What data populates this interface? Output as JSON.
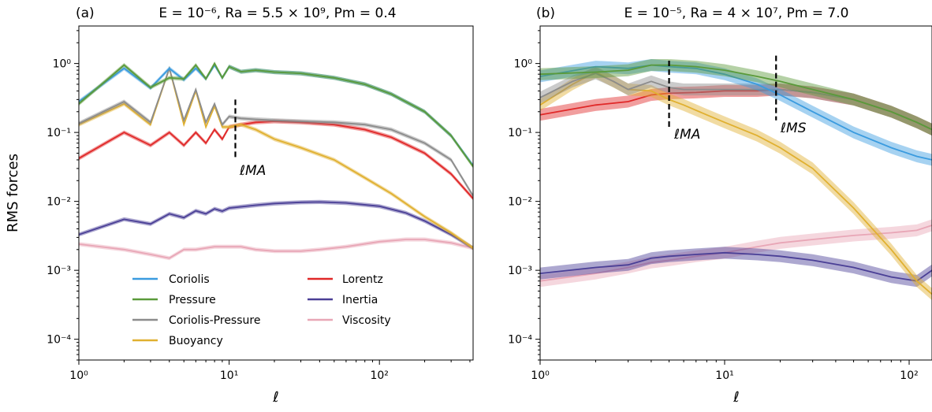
{
  "figure": {
    "ylabel": "RMS forces",
    "xlabel": "ℓ",
    "legend": [
      "Coriolis",
      "Pressure",
      "Coriolis-Pressure",
      "Buoyancy",
      "Lorentz",
      "Inertia",
      "Viscosity"
    ],
    "colors": {
      "Coriolis": "#3a9bdf",
      "Pressure": "#5a9a3a",
      "Coriolis-Pressure": "#8c8c8c",
      "Buoyancy": "#e0b030",
      "Lorentz": "#e02828",
      "Inertia": "#4a3f96",
      "Viscosity": "#e8a6b6"
    }
  },
  "panels": [
    {
      "label": "(a)",
      "title": "E = 10⁻⁶,  Ra = 5.5 × 10⁹,  Pm = 0.4",
      "annotation": "ℓMA"
    },
    {
      "label": "(b)",
      "title": "E = 10⁻⁵,  Ra = 4 × 10⁷,  Pm = 7.0",
      "annotation_1": "ℓMA",
      "annotation_2": "ℓMS"
    }
  ],
  "chart_data": [
    {
      "type": "line",
      "panel": "(a)",
      "xscale": "log",
      "yscale": "log",
      "xlim": [
        1,
        420
      ],
      "ylim": [
        5e-05,
        3.5
      ],
      "xticks": [
        1,
        10,
        100
      ],
      "xtick_labels": [
        "10⁰",
        "10¹",
        "10²"
      ],
      "yticks": [
        0.0001,
        0.001,
        0.01,
        0.1,
        1
      ],
      "ytick_labels": [
        "10⁻⁴",
        "10⁻³",
        "10⁻²",
        "10⁻¹",
        "10⁰"
      ],
      "xlabel": "ℓ",
      "ylabel": "RMS forces",
      "legend_position": "bottom-center",
      "vlines": [
        {
          "x": 11,
          "y": [
            0.04,
            0.3
          ],
          "label": "ℓMA"
        }
      ],
      "series": [
        {
          "name": "Coriolis",
          "x": [
            1,
            2,
            3,
            4,
            5,
            6,
            7,
            8,
            9,
            10,
            12,
            15,
            20,
            30,
            50,
            80,
            120,
            200,
            300,
            420
          ],
          "y": [
            0.28,
            0.85,
            0.44,
            0.85,
            0.58,
            0.85,
            0.6,
            0.95,
            0.62,
            0.9,
            0.76,
            0.8,
            0.75,
            0.72,
            0.62,
            0.5,
            0.36,
            0.2,
            0.09,
            0.033
          ]
        },
        {
          "name": "Pressure",
          "x": [
            1,
            2,
            3,
            4,
            5,
            6,
            7,
            8,
            9,
            10,
            12,
            15,
            20,
            30,
            50,
            80,
            120,
            200,
            300,
            420
          ],
          "y": [
            0.26,
            0.95,
            0.45,
            0.62,
            0.6,
            0.95,
            0.6,
            1.0,
            0.62,
            0.9,
            0.76,
            0.8,
            0.75,
            0.72,
            0.62,
            0.5,
            0.36,
            0.2,
            0.09,
            0.032
          ]
        },
        {
          "name": "Coriolis-Pressure",
          "x": [
            1,
            2,
            3,
            4,
            5,
            6,
            7,
            8,
            9,
            10,
            12,
            15,
            20,
            30,
            50,
            80,
            120,
            200,
            300,
            420
          ],
          "y": [
            0.135,
            0.28,
            0.14,
            0.85,
            0.15,
            0.42,
            0.14,
            0.26,
            0.13,
            0.17,
            0.16,
            0.155,
            0.15,
            0.145,
            0.14,
            0.13,
            0.11,
            0.07,
            0.04,
            0.012
          ]
        },
        {
          "name": "Buoyancy",
          "x": [
            1,
            2,
            3,
            4,
            5,
            6,
            7,
            8,
            9,
            10,
            12,
            15,
            20,
            30,
            50,
            80,
            120,
            200,
            300,
            420
          ],
          "y": [
            0.13,
            0.26,
            0.13,
            0.85,
            0.13,
            0.4,
            0.12,
            0.24,
            0.12,
            0.12,
            0.13,
            0.11,
            0.08,
            0.06,
            0.04,
            0.022,
            0.013,
            0.006,
            0.0035,
            0.0021
          ]
        },
        {
          "name": "Lorentz",
          "x": [
            1,
            2,
            3,
            4,
            5,
            6,
            7,
            8,
            9,
            10,
            12,
            15,
            20,
            30,
            50,
            80,
            120,
            200,
            300,
            420
          ],
          "y": [
            0.042,
            0.1,
            0.065,
            0.1,
            0.065,
            0.1,
            0.07,
            0.11,
            0.08,
            0.12,
            0.13,
            0.14,
            0.145,
            0.14,
            0.13,
            0.11,
            0.085,
            0.05,
            0.025,
            0.011
          ]
        },
        {
          "name": "Inertia",
          "x": [
            1,
            2,
            3,
            4,
            5,
            6,
            7,
            8,
            9,
            10,
            15,
            20,
            30,
            40,
            60,
            100,
            150,
            200,
            300,
            420
          ],
          "y": [
            0.0033,
            0.0055,
            0.0047,
            0.0066,
            0.0058,
            0.0073,
            0.0066,
            0.0078,
            0.0072,
            0.008,
            0.0088,
            0.0093,
            0.0097,
            0.0098,
            0.0095,
            0.0085,
            0.0068,
            0.0052,
            0.0033,
            0.0021
          ]
        },
        {
          "name": "Viscosity",
          "x": [
            1,
            2,
            3,
            4,
            5,
            6,
            8,
            10,
            12,
            15,
            20,
            30,
            40,
            60,
            100,
            150,
            200,
            300,
            420
          ],
          "y": [
            0.0024,
            0.002,
            0.0017,
            0.0015,
            0.002,
            0.002,
            0.0022,
            0.0022,
            0.0022,
            0.002,
            0.0019,
            0.0019,
            0.002,
            0.0022,
            0.0026,
            0.0028,
            0.0028,
            0.0025,
            0.0021
          ]
        }
      ]
    },
    {
      "type": "line",
      "panel": "(b)",
      "xscale": "log",
      "yscale": "log",
      "xlim": [
        1,
        133
      ],
      "ylim": [
        5e-05,
        3.5
      ],
      "xticks": [
        1,
        10,
        100
      ],
      "xtick_labels": [
        "10⁰",
        "10¹",
        "10²"
      ],
      "yticks": [
        0.0001,
        0.001,
        0.01,
        0.1,
        1
      ],
      "ytick_labels": [
        "10⁻⁴",
        "10⁻³",
        "10⁻²",
        "10⁻¹",
        "10⁰"
      ],
      "xlabel": "ℓ",
      "vlines": [
        {
          "x": 5,
          "y": [
            0.12,
            1.1
          ],
          "label": "ℓMA"
        },
        {
          "x": 19,
          "y": [
            0.15,
            1.3
          ],
          "label": "ℓMS"
        }
      ],
      "series": [
        {
          "name": "Coriolis",
          "x": [
            1,
            2,
            3,
            4,
            5,
            7,
            10,
            15,
            20,
            30,
            50,
            80,
            110,
            133
          ],
          "y": [
            0.65,
            0.9,
            0.85,
            0.95,
            0.9,
            0.85,
            0.7,
            0.5,
            0.35,
            0.2,
            0.1,
            0.06,
            0.045,
            0.04
          ]
        },
        {
          "name": "Pressure",
          "x": [
            1,
            2,
            3,
            4,
            5,
            7,
            10,
            15,
            20,
            30,
            50,
            80,
            110,
            133
          ],
          "y": [
            0.7,
            0.75,
            0.8,
            0.95,
            0.95,
            0.9,
            0.8,
            0.65,
            0.55,
            0.42,
            0.3,
            0.2,
            0.14,
            0.11
          ]
        },
        {
          "name": "Coriolis-Pressure",
          "x": [
            1,
            1.5,
            2,
            2.5,
            3,
            4,
            5,
            6,
            8,
            10,
            15,
            20,
            30,
            50,
            80,
            110,
            133
          ],
          "y": [
            0.32,
            0.55,
            0.72,
            0.55,
            0.42,
            0.55,
            0.45,
            0.42,
            0.42,
            0.42,
            0.42,
            0.42,
            0.38,
            0.3,
            0.2,
            0.14,
            0.11
          ]
        },
        {
          "name": "Buoyancy",
          "x": [
            1,
            1.5,
            2,
            3,
            4,
            5,
            6,
            8,
            10,
            15,
            20,
            30,
            50,
            80,
            110,
            133
          ],
          "y": [
            0.25,
            0.5,
            0.75,
            0.42,
            0.4,
            0.3,
            0.25,
            0.18,
            0.14,
            0.09,
            0.06,
            0.03,
            0.008,
            0.002,
            0.0007,
            0.00045
          ]
        },
        {
          "name": "Lorentz",
          "x": [
            1,
            2,
            3,
            4,
            5,
            7,
            10,
            15,
            20,
            30,
            50,
            80,
            110,
            133
          ],
          "y": [
            0.18,
            0.25,
            0.28,
            0.35,
            0.37,
            0.38,
            0.4,
            0.4,
            0.42,
            0.38,
            0.3,
            0.2,
            0.14,
            0.11
          ]
        },
        {
          "name": "Inertia",
          "x": [
            1,
            2,
            3,
            4,
            5,
            7,
            10,
            15,
            20,
            30,
            50,
            80,
            110,
            133
          ],
          "y": [
            0.0009,
            0.0011,
            0.0012,
            0.0015,
            0.0016,
            0.0017,
            0.0018,
            0.0017,
            0.0016,
            0.0014,
            0.0011,
            0.0008,
            0.0007,
            0.001
          ]
        },
        {
          "name": "Viscosity",
          "x": [
            1,
            2,
            3,
            4,
            5,
            7,
            10,
            15,
            20,
            30,
            50,
            80,
            110,
            133
          ],
          "y": [
            0.0007,
            0.0009,
            0.0011,
            0.0013,
            0.0014,
            0.0016,
            0.0018,
            0.0022,
            0.0025,
            0.0028,
            0.0032,
            0.0035,
            0.0038,
            0.0045
          ]
        }
      ]
    }
  ]
}
